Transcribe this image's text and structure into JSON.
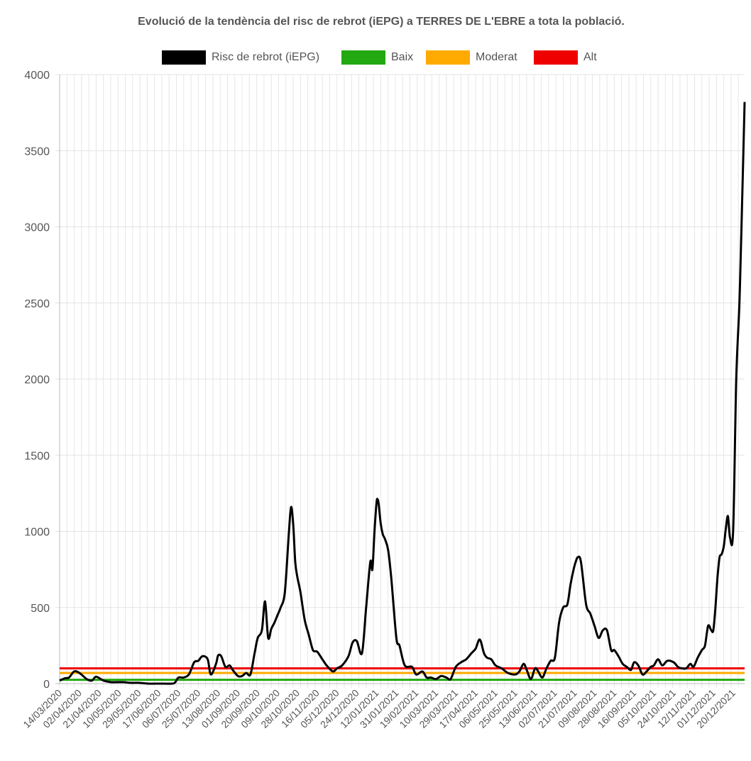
{
  "chart_data": {
    "type": "line",
    "title": "Evolució de la tendència del risc de rebrot (iEPG) a TERRES DE L'EBRE a tota la població.",
    "xlabel": "",
    "ylabel": "",
    "ylim": [
      0,
      4000
    ],
    "yticks": [
      0,
      500,
      1000,
      1500,
      2000,
      2500,
      3000,
      3500,
      4000
    ],
    "grid": true,
    "legend_position": "top",
    "x_start": "14/03/2020",
    "x_end": "31/12/2021",
    "x_tick_labels": [
      "14/03/2020",
      "02/04/2020",
      "21/04/2020",
      "10/05/2020",
      "29/05/2020",
      "17/06/2020",
      "06/07/2020",
      "25/07/2020",
      "13/08/2020",
      "01/09/2020",
      "20/09/2020",
      "09/10/2020",
      "28/10/2020",
      "16/11/2020",
      "05/12/2020",
      "24/12/2020",
      "12/01/2021",
      "31/01/2021",
      "19/02/2021",
      "10/03/2021",
      "29/03/2021",
      "17/04/2021",
      "06/05/2021",
      "25/05/2021",
      "13/06/2021",
      "02/07/2021",
      "21/07/2021",
      "09/08/2021",
      "28/08/2021",
      "16/09/2021",
      "05/10/2021",
      "24/10/2021",
      "12/11/2021",
      "01/12/2021",
      "20/12/2021"
    ],
    "series": [
      {
        "name": "Risc de rebrot (iEPG)",
        "color": "#000000",
        "x": [
          "14/03/2020",
          "19/03/2020",
          "23/03/2020",
          "28/03/2020",
          "02/04/2020",
          "09/04/2020",
          "14/04/2020",
          "18/04/2020",
          "25/04/2020",
          "02/05/2020",
          "08/05/2020",
          "14/05/2020",
          "21/05/2020",
          "29/05/2020",
          "07/06/2020",
          "17/06/2020",
          "30/06/2020",
          "03/07/2020",
          "06/07/2020",
          "11/07/2020",
          "16/07/2020",
          "21/07/2020",
          "25/07/2020",
          "29/07/2020",
          "03/08/2020",
          "06/08/2020",
          "11/08/2020",
          "13/08/2020",
          "16/08/2020",
          "20/08/2020",
          "24/08/2020",
          "27/08/2020",
          "01/09/2020",
          "05/09/2020",
          "09/09/2020",
          "13/09/2020",
          "17/09/2020",
          "20/09/2020",
          "24/09/2020",
          "27/09/2020",
          "30/09/2020",
          "03/10/2020",
          "06/10/2020",
          "09/10/2020",
          "12/10/2020",
          "16/10/2020",
          "20/10/2020",
          "22/10/2020",
          "24/10/2020",
          "26/10/2020",
          "28/10/2020",
          "31/10/2020",
          "04/11/2020",
          "08/11/2020",
          "12/11/2020",
          "16/11/2020",
          "21/11/2020",
          "25/11/2020",
          "01/12/2020",
          "05/12/2020",
          "10/12/2020",
          "16/12/2020",
          "20/12/2020",
          "24/12/2020",
          "29/12/2020",
          "02/01/2021",
          "06/01/2021",
          "08/01/2021",
          "10/01/2021",
          "12/01/2021",
          "13/01/2021",
          "14/01/2021",
          "16/01/2021",
          "18/01/2021",
          "20/01/2021",
          "23/01/2021",
          "26/01/2021",
          "31/01/2021",
          "03/02/2021",
          "08/02/2021",
          "15/02/2021",
          "19/02/2021",
          "25/02/2021",
          "01/03/2021",
          "05/03/2021",
          "10/03/2021",
          "15/03/2021",
          "20/03/2021",
          "24/03/2021",
          "29/03/2021",
          "03/04/2021",
          "08/04/2021",
          "13/04/2021",
          "17/04/2021",
          "21/04/2021",
          "25/04/2021",
          "28/04/2021",
          "02/05/2021",
          "06/05/2021",
          "12/05/2021",
          "18/05/2021",
          "25/05/2021",
          "29/05/2021",
          "02/06/2021",
          "05/06/2021",
          "09/06/2021",
          "13/06/2021",
          "16/06/2021",
          "20/06/2021",
          "24/06/2021",
          "28/06/2021",
          "02/07/2021",
          "06/07/2021",
          "10/07/2021",
          "14/07/2021",
          "17/07/2021",
          "20/07/2021",
          "22/07/2021",
          "24/07/2021",
          "27/07/2021",
          "01/08/2021",
          "05/08/2021",
          "09/08/2021",
          "13/08/2021",
          "17/08/2021",
          "21/08/2021",
          "25/08/2021",
          "28/08/2021",
          "01/09/2021",
          "05/09/2021",
          "09/09/2021",
          "13/09/2021",
          "16/09/2021",
          "20/09/2021",
          "24/09/2021",
          "28/09/2021",
          "02/10/2021",
          "05/10/2021",
          "09/10/2021",
          "13/10/2021",
          "18/10/2021",
          "24/10/2021",
          "28/10/2021",
          "01/11/2021",
          "05/11/2021",
          "09/11/2021",
          "12/11/2021",
          "16/11/2021",
          "20/11/2021",
          "23/11/2021",
          "26/11/2021",
          "29/11/2021",
          "01/12/2021",
          "03/12/2021",
          "05/12/2021",
          "07/12/2021",
          "09/12/2021",
          "11/12/2021",
          "13/12/2021",
          "15/12/2021",
          "17/12/2021",
          "20/12/2021",
          "23/12/2021",
          "26/12/2021",
          "28/12/2021",
          "31/12/2021"
        ],
        "y": [
          20,
          35,
          40,
          80,
          70,
          30,
          20,
          45,
          20,
          10,
          10,
          10,
          5,
          5,
          0,
          0,
          0,
          10,
          40,
          40,
          60,
          140,
          150,
          180,
          160,
          60,
          130,
          185,
          180,
          110,
          120,
          90,
          50,
          50,
          70,
          60,
          200,
          300,
          350,
          540,
          300,
          360,
          400,
          450,
          500,
          600,
          1000,
          1160,
          1050,
          800,
          700,
          600,
          420,
          320,
          220,
          210,
          160,
          120,
          80,
          100,
          120,
          180,
          270,
          280,
          200,
          500,
          800,
          750,
          1000,
          1190,
          1210,
          1180,
          1050,
          980,
          950,
          880,
          700,
          300,
          250,
          120,
          110,
          60,
          80,
          40,
          40,
          30,
          50,
          40,
          30,
          110,
          140,
          160,
          200,
          230,
          290,
          200,
          170,
          160,
          120,
          100,
          70,
          60,
          80,
          130,
          90,
          30,
          100,
          80,
          40,
          100,
          150,
          170,
          400,
          500,
          520,
          650,
          750,
          800,
          830,
          800,
          520,
          460,
          380,
          300,
          350,
          350,
          220,
          220,
          180,
          130,
          110,
          90,
          140,
          120,
          60,
          80,
          110,
          120,
          160,
          120,
          150,
          140,
          110,
          100,
          100,
          130,
          110,
          170,
          220,
          250,
          380,
          350,
          350,
          500,
          700,
          830,
          850,
          900,
          1020,
          1100,
          960,
          1000,
          2000,
          2500,
          3000,
          3820
        ]
      },
      {
        "name": "Baix",
        "color": "#22a811",
        "value": 25
      },
      {
        "name": "Moderat",
        "color": "#ffaa00",
        "value": 70
      },
      {
        "name": "Alt",
        "color": "#ee0000",
        "value": 100
      }
    ]
  }
}
